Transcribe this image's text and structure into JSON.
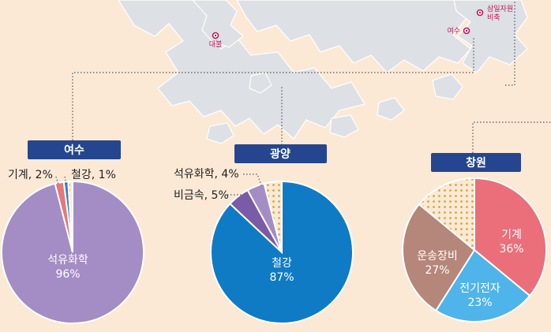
{
  "colors": {
    "background": "#fbe9d6",
    "land": "#dde0e4",
    "badge": "#25468f",
    "dotted_fill": "#fbe9d6",
    "dot": "#d4a93a",
    "map_marker": "#c2185b"
  },
  "map_labels": {
    "daebul": "대불",
    "yeosu": "여수",
    "stockpile": "삼일자원",
    "stockpile_2": "비축"
  },
  "chart_data": [
    {
      "type": "pie",
      "badge": "여수",
      "slices": [
        {
          "label": "석유화학",
          "value": 96,
          "color": "#a48cc4",
          "display": "96%"
        },
        {
          "label": "기계",
          "value": 2,
          "color": "#e8777a",
          "display": "2%"
        },
        {
          "label": "철강",
          "value": 1,
          "color": "#2f86c8",
          "display": "1%"
        },
        {
          "label": "",
          "value": 1,
          "color": "dotted",
          "display": ""
        }
      ],
      "labels": {
        "inside_name": "석유화학",
        "inside_value": "96%",
        "gigye": "기계, 2%",
        "cheolgang": "철강, 1%"
      }
    },
    {
      "type": "pie",
      "badge": "광양",
      "slices": [
        {
          "label": "철강",
          "value": 87,
          "color": "#0f7bc5",
          "display": "87%"
        },
        {
          "label": "비금속",
          "value": 5,
          "color": "#7b5ba8",
          "display": "5%"
        },
        {
          "label": "석유화학",
          "value": 4,
          "color": "#a48cc4",
          "display": "4%"
        },
        {
          "label": "",
          "value": 4,
          "color": "dotted",
          "display": ""
        }
      ],
      "labels": {
        "inside_name": "철강",
        "inside_value": "87%",
        "seokyu": "석유화학, 4%",
        "bigeum": "비금속, 5%"
      }
    },
    {
      "type": "pie",
      "badge": "창원",
      "slices": [
        {
          "label": "기계",
          "value": 36,
          "color": "#ea6f7a",
          "display": "36%"
        },
        {
          "label": "전기전자",
          "value": 23,
          "color": "#4fb4ea",
          "display": "23%"
        },
        {
          "label": "운송장비",
          "value": 27,
          "color": "#b5867a",
          "display": "27%"
        },
        {
          "label": "",
          "value": 14,
          "color": "dotted",
          "display": ""
        }
      ],
      "labels": {
        "gigye_name": "기계",
        "gigye_value": "36%",
        "jeongi_name": "전기전자",
        "jeongi_value": "23%",
        "unsong_name": "운송장비",
        "unsong_value": "27%"
      }
    }
  ]
}
